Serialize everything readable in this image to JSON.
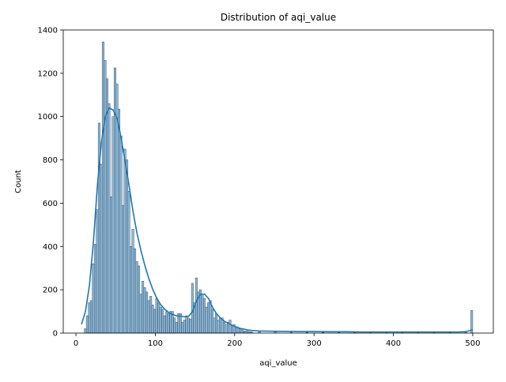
{
  "chart_data": {
    "type": "bar",
    "title": "Distribution of aqi_value",
    "xlabel": "aqi_value",
    "ylabel": "Count",
    "xlim": [
      -16,
      526
    ],
    "ylim": [
      0,
      1400
    ],
    "xticks": [
      0,
      100,
      200,
      300,
      400,
      500
    ],
    "yticks": [
      0,
      200,
      400,
      600,
      800,
      1000,
      1200,
      1400
    ],
    "grid": false,
    "bar_color": "#1f77b4",
    "bar_fill_opacity": 0.5,
    "kde_color": "#1f77b4",
    "bin_width": 2.5,
    "histogram": {
      "bin_start": [
        10.5,
        13,
        15.5,
        18,
        20.5,
        23,
        25.5,
        28,
        30.5,
        33,
        35.5,
        38,
        40.5,
        43,
        45.5,
        48,
        50.5,
        53,
        55.5,
        58,
        60.5,
        63,
        65.5,
        68,
        70.5,
        73,
        75.5,
        78,
        80.5,
        83,
        85.5,
        88,
        90.5,
        93,
        95.5,
        98,
        100.5,
        103,
        105.5,
        108,
        110.5,
        113,
        115.5,
        118,
        120.5,
        123,
        125.5,
        128,
        130.5,
        133,
        135.5,
        138,
        140.5,
        143,
        145.5,
        148,
        150.5,
        153,
        155.5,
        158,
        160.5,
        163,
        165.5,
        168,
        170.5,
        173,
        175.5,
        178,
        180.5,
        183,
        185.5,
        188,
        190.5,
        193,
        195.5,
        198,
        200.5,
        203,
        205.5,
        208,
        210.5,
        213,
        215.5,
        218,
        220.5,
        230,
        250,
        270,
        290,
        310,
        330,
        350,
        370,
        390,
        410,
        430,
        450,
        470,
        490,
        497.5
      ],
      "counts": [
        20,
        80,
        140,
        150,
        320,
        410,
        570,
        970,
        780,
        1345,
        1260,
        1175,
        1060,
        630,
        1000,
        1225,
        1150,
        1035,
        910,
        590,
        850,
        800,
        655,
        400,
        480,
        390,
        330,
        310,
        180,
        240,
        210,
        190,
        150,
        170,
        130,
        110,
        160,
        140,
        120,
        110,
        80,
        100,
        90,
        100,
        100,
        70,
        50,
        90,
        90,
        50,
        60,
        80,
        70,
        65,
        230,
        140,
        255,
        190,
        200,
        180,
        160,
        120,
        140,
        150,
        110,
        70,
        90,
        60,
        70,
        70,
        50,
        40,
        50,
        60,
        35,
        40,
        30,
        25,
        20,
        15,
        10,
        10,
        8,
        6,
        5,
        6,
        5,
        4,
        3,
        3,
        3,
        3,
        3,
        3,
        3,
        3,
        3,
        3,
        3,
        105
      ]
    },
    "kde": {
      "x": [
        7,
        12,
        17,
        22,
        27,
        32,
        37,
        42,
        47,
        52,
        57,
        62,
        67,
        72,
        77,
        82,
        87,
        92,
        97,
        102,
        107,
        112,
        117,
        122,
        127,
        132,
        137,
        142,
        147,
        152,
        157,
        162,
        167,
        172,
        177,
        182,
        187,
        192,
        197,
        202,
        207,
        212,
        217,
        222,
        230,
        240,
        260,
        280,
        300,
        320,
        340,
        360,
        380,
        400,
        420,
        440,
        460,
        480,
        490,
        495,
        500
      ],
      "y": [
        40,
        100,
        220,
        420,
        680,
        880,
        1000,
        1040,
        1030,
        990,
        900,
        790,
        680,
        560,
        460,
        380,
        310,
        250,
        200,
        160,
        130,
        110,
        95,
        85,
        80,
        78,
        75,
        78,
        100,
        150,
        180,
        180,
        160,
        120,
        90,
        70,
        55,
        45,
        35,
        28,
        22,
        18,
        14,
        12,
        10,
        9,
        8,
        7,
        7,
        6,
        6,
        5,
        5,
        5,
        5,
        5,
        5,
        5,
        6,
        10,
        15
      ]
    }
  }
}
